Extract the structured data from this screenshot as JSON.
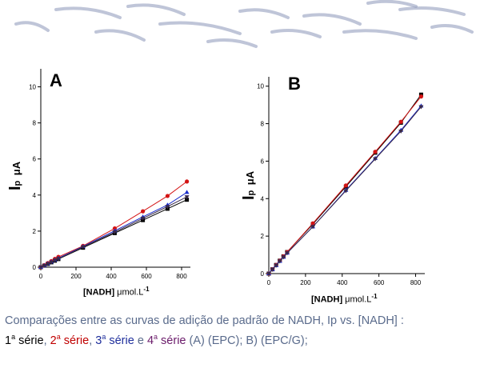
{
  "caption": {
    "line1": "Comparações entre as curvas de adição de padrão de NADH, Ip vs. [NADH] :",
    "s1": "1",
    "s2": "2",
    "s3": "3",
    "s4": "4",
    "ord": "a",
    "serie": " série",
    "sep1": ", ",
    "sep2": ", ",
    "sep3": "  e ",
    "rest": " (A)  (EPC); B)  (EPC/G);"
  },
  "colors": {
    "series1": "#000000",
    "series2": "#d41414",
    "series3": "#1a2ccc",
    "series4": "#3a2a4a",
    "decor": "#8a96b8"
  },
  "chart_data": [
    {
      "type": "line",
      "panel_label": "A",
      "ylabel_main": "I",
      "ylabel_sub": "p",
      "ylabel_unit": "μA",
      "xlabel_main": "[NADH] ",
      "xlabel_unit": "μmol.L",
      "xlabel_exp": "-1",
      "xlim": [
        0,
        850
      ],
      "ylim": [
        0,
        11
      ],
      "xticks": [
        0,
        200,
        400,
        600,
        800
      ],
      "yticks": [
        0,
        2,
        4,
        6,
        8,
        10
      ],
      "x": [
        0,
        20,
        40,
        60,
        80,
        100,
        240,
        420,
        580,
        720,
        830
      ],
      "series": [
        {
          "values": [
            0,
            0.09,
            0.18,
            0.27,
            0.36,
            0.45,
            1.08,
            1.89,
            2.61,
            3.24,
            3.74
          ]
        },
        {
          "values": [
            0,
            0.11,
            0.23,
            0.34,
            0.46,
            0.57,
            1.18,
            2.15,
            3.1,
            3.95,
            4.75
          ]
        },
        {
          "values": [
            0,
            0.1,
            0.2,
            0.3,
            0.4,
            0.5,
            1.15,
            2.02,
            2.79,
            3.45,
            4.15
          ]
        },
        {
          "values": [
            0,
            0.09,
            0.19,
            0.28,
            0.38,
            0.47,
            1.12,
            1.95,
            2.71,
            3.36,
            3.9
          ]
        }
      ]
    },
    {
      "type": "line",
      "panel_label": "B",
      "ylabel_main": "I",
      "ylabel_sub": "p",
      "ylabel_unit": "μA",
      "xlabel_main": "[NADH] ",
      "xlabel_unit": "μmol.L",
      "xlabel_exp": "-1",
      "xlim": [
        0,
        850
      ],
      "ylim": [
        0,
        10.5
      ],
      "xticks": [
        0,
        200,
        400,
        600,
        800
      ],
      "yticks": [
        0,
        2,
        4,
        6,
        8,
        10
      ],
      "x": [
        0,
        20,
        40,
        60,
        80,
        100,
        240,
        420,
        580,
        720,
        830
      ],
      "series": [
        {
          "values": [
            0,
            0.23,
            0.46,
            0.69,
            0.92,
            1.15,
            2.64,
            4.64,
            6.45,
            8.05,
            9.55
          ]
        },
        {
          "values": [
            0,
            0.23,
            0.46,
            0.69,
            0.92,
            1.15,
            2.68,
            4.7,
            6.5,
            8.1,
            9.45
          ]
        },
        {
          "values": [
            0,
            0.22,
            0.44,
            0.66,
            0.88,
            1.1,
            2.5,
            4.45,
            6.15,
            7.65,
            8.95
          ]
        },
        {
          "values": [
            0,
            0.22,
            0.44,
            0.66,
            0.88,
            1.1,
            2.5,
            4.42,
            6.12,
            7.6,
            8.9
          ]
        }
      ]
    }
  ]
}
